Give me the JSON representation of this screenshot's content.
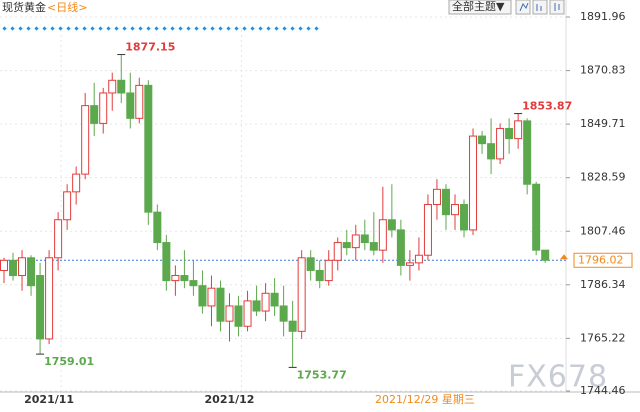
{
  "chart_data": {
    "type": "candlestick",
    "title": "现货黄金",
    "period": "<日线>",
    "theme_button": "全部主题▼",
    "date_label": "2021/12/29 星期三",
    "watermark": "FX678",
    "up_color": "#e23b3b",
    "down_color": "#5ca84c",
    "last_price_color": "#f08a1c",
    "grid": true,
    "ylim": [
      1744.46,
      1891.96
    ],
    "yticks": [
      1891.96,
      1870.83,
      1849.71,
      1828.59,
      1807.46,
      1786.34,
      1765.22,
      1744.46
    ],
    "categories": [
      null,
      null,
      null,
      null,
      null,
      "2021/11",
      null,
      null,
      null,
      null,
      null,
      null,
      null,
      null,
      null,
      null,
      null,
      null,
      null,
      null,
      null,
      null,
      null,
      null,
      null,
      "2021/12",
      null,
      null,
      null,
      null,
      null,
      null,
      null,
      null,
      null,
      null,
      null,
      null,
      null,
      null,
      null,
      null,
      null,
      null,
      null,
      null,
      null,
      null,
      null,
      null,
      null,
      null,
      null,
      null,
      null,
      null,
      null,
      null,
      null,
      null,
      null
    ],
    "open": [
      1792,
      1796,
      1790,
      1797,
      1790,
      1765,
      1797,
      1812,
      1823,
      1830,
      1857,
      1850,
      1862,
      1867,
      1862,
      1852,
      1865,
      1815,
      1803,
      1788,
      1790,
      1788,
      1786,
      1778,
      1785,
      1772,
      1778,
      1770,
      1780,
      1776,
      1783,
      1778,
      1772,
      1768,
      1797,
      1792,
      1788,
      1796,
      1803,
      1801,
      1806,
      1803,
      1800,
      1812,
      1808,
      1794,
      1795,
      1798,
      1818,
      1824,
      1814,
      1818,
      1808,
      1845,
      1842,
      1836,
      1848,
      1844,
      1851,
      1826,
      1800
    ],
    "high": [
      1797,
      1799,
      1800,
      1798,
      1795,
      1800,
      1815,
      1826,
      1833,
      1862,
      1866,
      1864,
      1870,
      1877.15,
      1870,
      1868,
      1867,
      1818,
      1806,
      1794,
      1800,
      1796,
      1792,
      1790,
      1788,
      1783,
      1782,
      1784,
      1786,
      1787,
      1789,
      1786,
      1780,
      1800,
      1800,
      1796,
      1800,
      1805,
      1808,
      1810,
      1812,
      1815,
      1825,
      1826,
      1812,
      1800,
      1805,
      1822,
      1828,
      1826,
      1822,
      1820,
      1848,
      1847,
      1852,
      1850,
      1852,
      1853.87,
      1852,
      1827,
      1800
    ],
    "low": [
      1787,
      1788,
      1784,
      1782,
      1759.01,
      1763,
      1792,
      1808,
      1818,
      1828,
      1845,
      1846,
      1855,
      1858,
      1848,
      1850,
      1810,
      1800,
      1784,
      1782,
      1785,
      1782,
      1775,
      1770,
      1768,
      1764,
      1766,
      1768,
      1774,
      1772,
      1774,
      1766,
      1753.77,
      1765,
      1788,
      1785,
      1786,
      1792,
      1798,
      1796,
      1800,
      1798,
      1795,
      1805,
      1790,
      1788,
      1792,
      1796,
      1812,
      1808,
      1808,
      1805,
      1806,
      1838,
      1830,
      1834,
      1838,
      1840,
      1822,
      1798,
      1795
    ],
    "close": [
      1796,
      1790,
      1797,
      1786,
      1765,
      1797,
      1812,
      1823,
      1830,
      1857,
      1850,
      1862,
      1867,
      1862,
      1852,
      1865,
      1815,
      1803,
      1788,
      1790,
      1788,
      1786,
      1778,
      1785,
      1772,
      1778,
      1770,
      1780,
      1776,
      1783,
      1778,
      1772,
      1768,
      1797,
      1792,
      1788,
      1796,
      1803,
      1801,
      1806,
      1803,
      1800,
      1812,
      1808,
      1794,
      1795,
      1798,
      1818,
      1824,
      1814,
      1818,
      1808,
      1845,
      1842,
      1836,
      1848,
      1844,
      1851,
      1826,
      1800,
      1796.02
    ]
  }
}
